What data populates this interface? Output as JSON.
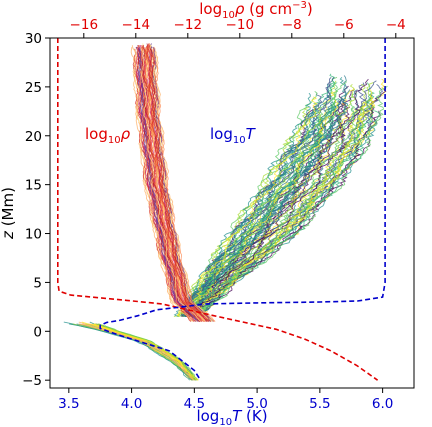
{
  "chart_data": {
    "type": "line",
    "title": "",
    "axes": {
      "x_bottom": {
        "label_base": "log",
        "label_sub": "10",
        "label_var": "T",
        "label_unit": " (K)",
        "range": [
          3.35,
          6.25
        ],
        "ticks": [
          3.5,
          4.0,
          4.5,
          5.0,
          5.5,
          6.0
        ],
        "tick_labels": [
          "3.5",
          "4.0",
          "4.5",
          "5.0",
          "5.5",
          "6.0"
        ],
        "color": "#0000cc"
      },
      "x_top": {
        "label_base": "log",
        "label_sub": "10",
        "label_var": "ρ",
        "label_unit": " (g cm",
        "label_sup": "−3",
        "label_close": ")",
        "range": [
          -17.3,
          -3.3
        ],
        "ticks": [
          -16,
          -14,
          -12,
          -10,
          -8,
          -6,
          -4
        ],
        "tick_labels": [
          "−16",
          "−14",
          "−12",
          "−10",
          "−8",
          "−6",
          "−4"
        ],
        "color": "#e00000"
      },
      "y": {
        "label_var": "z",
        "label_unit": " (Mm)",
        "range": [
          -5.8,
          30
        ],
        "ticks": [
          -5,
          0,
          5,
          10,
          15,
          20,
          25,
          30
        ],
        "tick_labels": [
          "−5",
          "0",
          "5",
          "10",
          "15",
          "20",
          "25",
          "30"
        ]
      }
    },
    "annotations": {
      "rho": {
        "base": "log",
        "sub": "10",
        "var": "ρ",
        "color": "#e00000"
      },
      "T": {
        "base": "log",
        "sub": "10",
        "var": "T",
        "color": "#0000cc"
      }
    },
    "series": [
      {
        "axis": "x_top",
        "style": "dashed",
        "color": "#e00000",
        "points": [
          [
            -17.0,
            30
          ],
          [
            -17.0,
            5
          ],
          [
            -16.95,
            4.1
          ],
          [
            -16.5,
            3.7
          ],
          [
            -14.5,
            3.2
          ],
          [
            -13.0,
            2.8
          ],
          [
            -12.0,
            2.2
          ],
          [
            -11.0,
            1.6
          ],
          [
            -9.8,
            0.9
          ],
          [
            -8.6,
            0.2
          ],
          [
            -7.5,
            -0.8
          ],
          [
            -6.5,
            -2.0
          ],
          [
            -5.5,
            -3.5
          ],
          [
            -4.7,
            -5.0
          ]
        ]
      },
      {
        "axis": "x_bottom",
        "style": "dashed",
        "color": "#0000cc",
        "points": [
          [
            6.02,
            30
          ],
          [
            6.02,
            5
          ],
          [
            6.0,
            3.5
          ],
          [
            5.8,
            3.1
          ],
          [
            5.5,
            3.0
          ],
          [
            5.0,
            2.9
          ],
          [
            4.6,
            2.8
          ],
          [
            4.4,
            2.5
          ],
          [
            4.2,
            2.2
          ],
          [
            4.05,
            1.6
          ],
          [
            3.9,
            1.1
          ],
          [
            3.8,
            0.9
          ],
          [
            3.75,
            0.6
          ],
          [
            3.75,
            0.3
          ],
          [
            3.9,
            -0.4
          ],
          [
            4.1,
            -1.2
          ],
          [
            4.3,
            -2.0
          ],
          [
            4.4,
            -3.0
          ],
          [
            4.5,
            -4.0
          ],
          [
            4.55,
            -5.0
          ]
        ]
      }
    ]
  }
}
